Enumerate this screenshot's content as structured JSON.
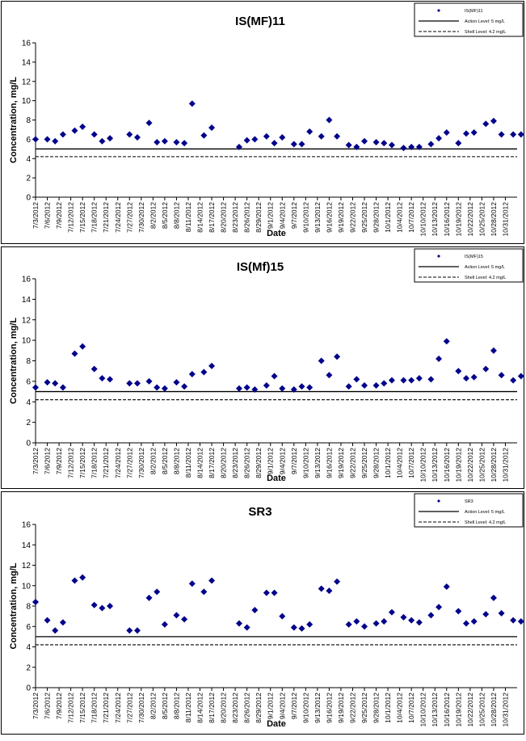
{
  "chart_data": [
    {
      "type": "scatter",
      "title": "IS(MF)11",
      "xlabel": "Date",
      "ylabel": "Concentration, mg/L",
      "ylim": [
        0,
        16
      ],
      "yticks": [
        "0",
        "2",
        "4",
        "6",
        "8",
        "10",
        "12",
        "14",
        "16"
      ],
      "xticks": [
        "7/3/2012",
        "7/6/2012",
        "7/9/2012",
        "7/12/2012",
        "7/15/2012",
        "7/18/2012",
        "7/21/2012",
        "7/24/2012",
        "7/27/2012",
        "7/30/2012",
        "8/2/2012",
        "8/5/2012",
        "8/8/2012",
        "8/11/2012",
        "8/14/2012",
        "8/17/2012",
        "8/20/2012",
        "8/23/2012",
        "8/26/2012",
        "8/29/2012",
        "9/1/2012",
        "9/4/2012",
        "9/7/2012",
        "9/10/2012",
        "9/13/2012",
        "9/16/2012",
        "9/19/2012",
        "9/22/2012",
        "9/25/2012",
        "9/28/2012",
        "10/1/2012",
        "10/4/2012",
        "10/7/2012",
        "10/10/2012",
        "10/13/2012",
        "10/16/2012",
        "10/19/2012",
        "10/22/2012",
        "10/25/2012",
        "10/28/2012",
        "10/31/2012"
      ],
      "legend": [
        "IS(MF)11",
        "Action Level: 5 mg/L",
        "Shell Level: 4.2 mg/L"
      ],
      "legend_position": "top-right",
      "action_level": 5,
      "shell_level": 4.2,
      "points": [
        {
          "x": "7/3/2012",
          "y": 6.0
        },
        {
          "x": "7/6/2012",
          "y": 6.0
        },
        {
          "x": "7/8/2012",
          "y": 5.8
        },
        {
          "x": "7/10/2012",
          "y": 6.5
        },
        {
          "x": "7/13/2012",
          "y": 6.9
        },
        {
          "x": "7/15/2012",
          "y": 7.3
        },
        {
          "x": "7/18/2012",
          "y": 6.5
        },
        {
          "x": "7/20/2012",
          "y": 5.8
        },
        {
          "x": "7/22/2012",
          "y": 6.1
        },
        {
          "x": "7/27/2012",
          "y": 6.5
        },
        {
          "x": "7/29/2012",
          "y": 6.2
        },
        {
          "x": "8/1/2012",
          "y": 7.7
        },
        {
          "x": "8/3/2012",
          "y": 5.7
        },
        {
          "x": "8/5/2012",
          "y": 5.8
        },
        {
          "x": "8/8/2012",
          "y": 5.7
        },
        {
          "x": "8/10/2012",
          "y": 5.6
        },
        {
          "x": "8/12/2012",
          "y": 9.7
        },
        {
          "x": "8/15/2012",
          "y": 6.4
        },
        {
          "x": "8/17/2012",
          "y": 7.2
        },
        {
          "x": "8/24/2012",
          "y": 5.2
        },
        {
          "x": "8/26/2012",
          "y": 5.9
        },
        {
          "x": "8/28/2012",
          "y": 6.0
        },
        {
          "x": "8/31/2012",
          "y": 6.3
        },
        {
          "x": "9/2/2012",
          "y": 5.6
        },
        {
          "x": "9/4/2012",
          "y": 6.2
        },
        {
          "x": "9/7/2012",
          "y": 5.5
        },
        {
          "x": "9/9/2012",
          "y": 5.5
        },
        {
          "x": "9/11/2012",
          "y": 6.8
        },
        {
          "x": "9/14/2012",
          "y": 6.3
        },
        {
          "x": "9/16/2012",
          "y": 8.0
        },
        {
          "x": "9/18/2012",
          "y": 6.3
        },
        {
          "x": "9/21/2012",
          "y": 5.4
        },
        {
          "x": "9/23/2012",
          "y": 5.2
        },
        {
          "x": "9/25/2012",
          "y": 5.8
        },
        {
          "x": "9/28/2012",
          "y": 5.7
        },
        {
          "x": "9/30/2012",
          "y": 5.6
        },
        {
          "x": "10/2/2012",
          "y": 5.4
        },
        {
          "x": "10/5/2012",
          "y": 5.1
        },
        {
          "x": "10/7/2012",
          "y": 5.2
        },
        {
          "x": "10/9/2012",
          "y": 5.2
        },
        {
          "x": "10/12/2012",
          "y": 5.5
        },
        {
          "x": "10/14/2012",
          "y": 6.1
        },
        {
          "x": "10/16/2012",
          "y": 6.7
        },
        {
          "x": "10/19/2012",
          "y": 5.6
        },
        {
          "x": "10/21/2012",
          "y": 6.6
        },
        {
          "x": "10/23/2012",
          "y": 6.7
        },
        {
          "x": "10/26/2012",
          "y": 7.6
        },
        {
          "x": "10/28/2012",
          "y": 7.9
        },
        {
          "x": "10/30/2012",
          "y": 6.5
        },
        {
          "x": "11/2/2012",
          "y": 6.5
        },
        {
          "x": "11/4/2012",
          "y": 6.5
        }
      ]
    },
    {
      "type": "scatter",
      "title": "IS(Mf)15",
      "xlabel": "Date",
      "ylabel": "Concentration, mg/L",
      "ylim": [
        0,
        16
      ],
      "yticks": [
        "0",
        "2",
        "4",
        "6",
        "8",
        "10",
        "12",
        "14",
        "16"
      ],
      "xticks": [
        "7/3/2012",
        "7/6/2012",
        "7/9/2012",
        "7/12/2012",
        "7/15/2012",
        "7/18/2012",
        "7/21/2012",
        "7/24/2012",
        "7/27/2012",
        "7/30/2012",
        "8/2/2012",
        "8/5/2012",
        "8/8/2012",
        "8/11/2012",
        "8/14/2012",
        "8/17/2012",
        "8/20/2012",
        "8/23/2012",
        "8/26/2012",
        "8/29/2012",
        "9/1/2012",
        "9/4/2012",
        "9/7/2012",
        "9/10/2012",
        "9/13/2012",
        "9/16/2012",
        "9/19/2012",
        "9/22/2012",
        "9/25/2012",
        "9/28/2012",
        "10/1/2012",
        "10/4/2012",
        "10/7/2012",
        "10/10/2012",
        "10/13/2012",
        "10/16/2012",
        "10/19/2012",
        "10/22/2012",
        "10/25/2012",
        "10/28/2012",
        "10/31/2012"
      ],
      "legend": [
        "IS(MF)15",
        "Action Level: 5 mg/L",
        "Shell Level: 4.2 mg/L"
      ],
      "legend_position": "top-right",
      "action_level": 5,
      "shell_level": 4.2,
      "points": [
        {
          "x": "7/3/2012",
          "y": 5.4
        },
        {
          "x": "7/6/2012",
          "y": 5.9
        },
        {
          "x": "7/8/2012",
          "y": 5.8
        },
        {
          "x": "7/10/2012",
          "y": 5.4
        },
        {
          "x": "7/13/2012",
          "y": 8.7
        },
        {
          "x": "7/15/2012",
          "y": 9.4
        },
        {
          "x": "7/18/2012",
          "y": 7.2
        },
        {
          "x": "7/20/2012",
          "y": 6.3
        },
        {
          "x": "7/22/2012",
          "y": 6.2
        },
        {
          "x": "7/27/2012",
          "y": 5.8
        },
        {
          "x": "7/29/2012",
          "y": 5.8
        },
        {
          "x": "8/1/2012",
          "y": 6.0
        },
        {
          "x": "8/3/2012",
          "y": 5.4
        },
        {
          "x": "8/5/2012",
          "y": 5.3
        },
        {
          "x": "8/8/2012",
          "y": 5.9
        },
        {
          "x": "8/10/2012",
          "y": 5.5
        },
        {
          "x": "8/12/2012",
          "y": 6.7
        },
        {
          "x": "8/15/2012",
          "y": 6.9
        },
        {
          "x": "8/17/2012",
          "y": 7.5
        },
        {
          "x": "8/24/2012",
          "y": 5.3
        },
        {
          "x": "8/26/2012",
          "y": 5.4
        },
        {
          "x": "8/28/2012",
          "y": 5.2
        },
        {
          "x": "8/31/2012",
          "y": 5.6
        },
        {
          "x": "9/2/2012",
          "y": 6.5
        },
        {
          "x": "9/4/2012",
          "y": 5.3
        },
        {
          "x": "9/7/2012",
          "y": 5.2
        },
        {
          "x": "9/9/2012",
          "y": 5.5
        },
        {
          "x": "9/11/2012",
          "y": 5.4
        },
        {
          "x": "9/14/2012",
          "y": 8.0
        },
        {
          "x": "9/16/2012",
          "y": 6.6
        },
        {
          "x": "9/18/2012",
          "y": 8.4
        },
        {
          "x": "9/21/2012",
          "y": 5.5
        },
        {
          "x": "9/23/2012",
          "y": 6.2
        },
        {
          "x": "9/25/2012",
          "y": 5.6
        },
        {
          "x": "9/28/2012",
          "y": 5.6
        },
        {
          "x": "9/30/2012",
          "y": 5.8
        },
        {
          "x": "10/2/2012",
          "y": 6.1
        },
        {
          "x": "10/5/2012",
          "y": 6.1
        },
        {
          "x": "10/7/2012",
          "y": 6.1
        },
        {
          "x": "10/9/2012",
          "y": 6.3
        },
        {
          "x": "10/12/2012",
          "y": 6.2
        },
        {
          "x": "10/14/2012",
          "y": 8.2
        },
        {
          "x": "10/16/2012",
          "y": 9.9
        },
        {
          "x": "10/19/2012",
          "y": 7.0
        },
        {
          "x": "10/21/2012",
          "y": 6.3
        },
        {
          "x": "10/23/2012",
          "y": 6.4
        },
        {
          "x": "10/26/2012",
          "y": 7.2
        },
        {
          "x": "10/28/2012",
          "y": 9.0
        },
        {
          "x": "10/30/2012",
          "y": 6.6
        },
        {
          "x": "11/2/2012",
          "y": 6.1
        },
        {
          "x": "11/4/2012",
          "y": 6.5
        }
      ]
    },
    {
      "type": "scatter",
      "title": "SR3",
      "xlabel": "Date",
      "ylabel": "Concentration, mg/L",
      "ylim": [
        0,
        16
      ],
      "yticks": [
        "0",
        "2",
        "4",
        "6",
        "8",
        "10",
        "12",
        "14",
        "16"
      ],
      "xticks": [
        "7/3/2012",
        "7/6/2012",
        "7/9/2012",
        "7/12/2012",
        "7/15/2012",
        "7/18/2012",
        "7/21/2012",
        "7/24/2012",
        "7/27/2012",
        "7/30/2012",
        "8/2/2012",
        "8/5/2012",
        "8/8/2012",
        "8/11/2012",
        "8/14/2012",
        "8/17/2012",
        "8/20/2012",
        "8/23/2012",
        "8/26/2012",
        "8/29/2012",
        "9/1/2012",
        "9/4/2012",
        "9/7/2012",
        "9/10/2012",
        "9/13/2012",
        "9/16/2012",
        "9/19/2012",
        "9/22/2012",
        "9/25/2012",
        "9/28/2012",
        "10/1/2012",
        "10/4/2012",
        "10/7/2012",
        "10/10/2012",
        "10/13/2012",
        "10/16/2012",
        "10/19/2012",
        "10/22/2012",
        "10/25/2012",
        "10/28/2012",
        "10/31/2012"
      ],
      "legend": [
        "SR3",
        "Action Level: 5 mg/L",
        "Shell Level: 4.2 mg/L"
      ],
      "legend_position": "top-right",
      "action_level": 5,
      "shell_level": 4.2,
      "points": [
        {
          "x": "7/3/2012",
          "y": 8.4
        },
        {
          "x": "7/6/2012",
          "y": 6.6
        },
        {
          "x": "7/8/2012",
          "y": 5.6
        },
        {
          "x": "7/10/2012",
          "y": 6.4
        },
        {
          "x": "7/13/2012",
          "y": 10.5
        },
        {
          "x": "7/15/2012",
          "y": 10.8
        },
        {
          "x": "7/18/2012",
          "y": 8.1
        },
        {
          "x": "7/20/2012",
          "y": 7.8
        },
        {
          "x": "7/22/2012",
          "y": 8.0
        },
        {
          "x": "7/27/2012",
          "y": 5.6
        },
        {
          "x": "7/29/2012",
          "y": 5.6
        },
        {
          "x": "8/1/2012",
          "y": 8.8
        },
        {
          "x": "8/3/2012",
          "y": 9.4
        },
        {
          "x": "8/5/2012",
          "y": 6.2
        },
        {
          "x": "8/8/2012",
          "y": 7.1
        },
        {
          "x": "8/10/2012",
          "y": 6.7
        },
        {
          "x": "8/12/2012",
          "y": 10.2
        },
        {
          "x": "8/15/2012",
          "y": 9.4
        },
        {
          "x": "8/17/2012",
          "y": 10.5
        },
        {
          "x": "8/24/2012",
          "y": 6.3
        },
        {
          "x": "8/26/2012",
          "y": 5.9
        },
        {
          "x": "8/28/2012",
          "y": 7.6
        },
        {
          "x": "8/31/2012",
          "y": 9.3
        },
        {
          "x": "9/2/2012",
          "y": 9.3
        },
        {
          "x": "9/4/2012",
          "y": 7.0
        },
        {
          "x": "9/7/2012",
          "y": 5.9
        },
        {
          "x": "9/9/2012",
          "y": 5.8
        },
        {
          "x": "9/11/2012",
          "y": 6.2
        },
        {
          "x": "9/14/2012",
          "y": 9.7
        },
        {
          "x": "9/16/2012",
          "y": 9.5
        },
        {
          "x": "9/18/2012",
          "y": 10.4
        },
        {
          "x": "9/21/2012",
          "y": 6.2
        },
        {
          "x": "9/23/2012",
          "y": 6.5
        },
        {
          "x": "9/25/2012",
          "y": 6.0
        },
        {
          "x": "9/28/2012",
          "y": 6.3
        },
        {
          "x": "9/30/2012",
          "y": 6.5
        },
        {
          "x": "10/2/2012",
          "y": 7.4
        },
        {
          "x": "10/5/2012",
          "y": 6.9
        },
        {
          "x": "10/7/2012",
          "y": 6.6
        },
        {
          "x": "10/9/2012",
          "y": 6.4
        },
        {
          "x": "10/12/2012",
          "y": 7.1
        },
        {
          "x": "10/14/2012",
          "y": 7.9
        },
        {
          "x": "10/16/2012",
          "y": 9.9
        },
        {
          "x": "10/19/2012",
          "y": 7.5
        },
        {
          "x": "10/21/2012",
          "y": 6.3
        },
        {
          "x": "10/23/2012",
          "y": 6.5
        },
        {
          "x": "10/26/2012",
          "y": 7.2
        },
        {
          "x": "10/28/2012",
          "y": 8.8
        },
        {
          "x": "10/30/2012",
          "y": 7.3
        },
        {
          "x": "11/2/2012",
          "y": 6.6
        },
        {
          "x": "11/4/2012",
          "y": 6.5
        }
      ]
    }
  ],
  "colors": {
    "marker": "#00008b",
    "line": "#000000",
    "frame": "#000000",
    "background": "#ffffff"
  },
  "legend_marker_icon": "diamond-icon"
}
